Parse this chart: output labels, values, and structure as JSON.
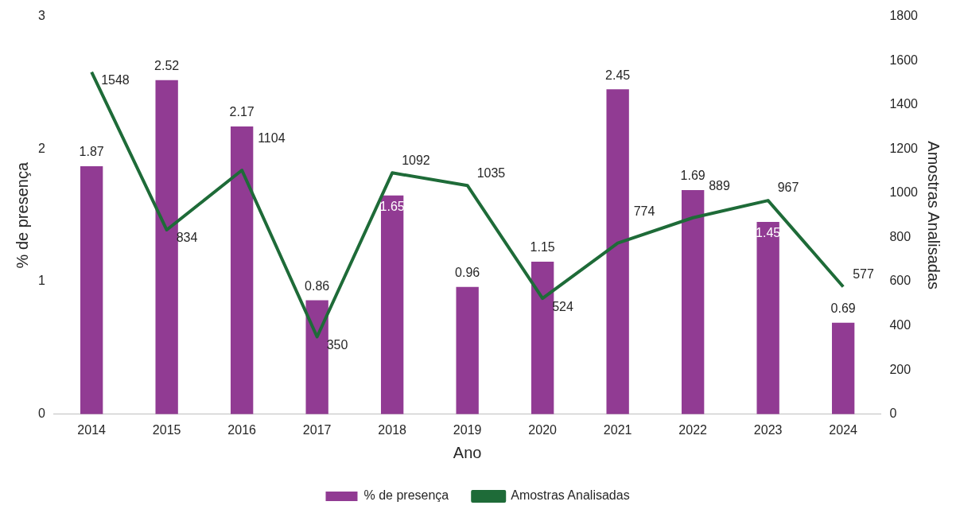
{
  "chart_data": {
    "type": "bar",
    "categories": [
      "2014",
      "2015",
      "2016",
      "2017",
      "2018",
      "2019",
      "2020",
      "2021",
      "2022",
      "2023",
      "2024"
    ],
    "series": [
      {
        "name": "% de presença",
        "color": "#913b93",
        "values": [
          1.87,
          2.52,
          2.17,
          0.86,
          1.65,
          0.96,
          1.15,
          2.45,
          1.69,
          1.45,
          0.69
        ]
      },
      {
        "name": "Amostras Analisadas",
        "type": "line",
        "axis": "y2",
        "color": "#1e6b38",
        "values": [
          1548,
          834,
          1104,
          350,
          1092,
          1035,
          524,
          774,
          889,
          967,
          577
        ]
      }
    ],
    "xlabel": "Ano",
    "ylabel": "% de presença",
    "y2label": "Amostras Analisadas",
    "ylim": [
      0,
      3
    ],
    "yticks": [
      0,
      1,
      2,
      3
    ],
    "y2lim": [
      0,
      1800
    ],
    "y2ticks": [
      0,
      200,
      400,
      600,
      800,
      1000,
      1200,
      1400,
      1600,
      1800
    ],
    "data_labels": true,
    "grid": false,
    "legend": "bottom",
    "marker": "none",
    "line_style": "solid"
  }
}
